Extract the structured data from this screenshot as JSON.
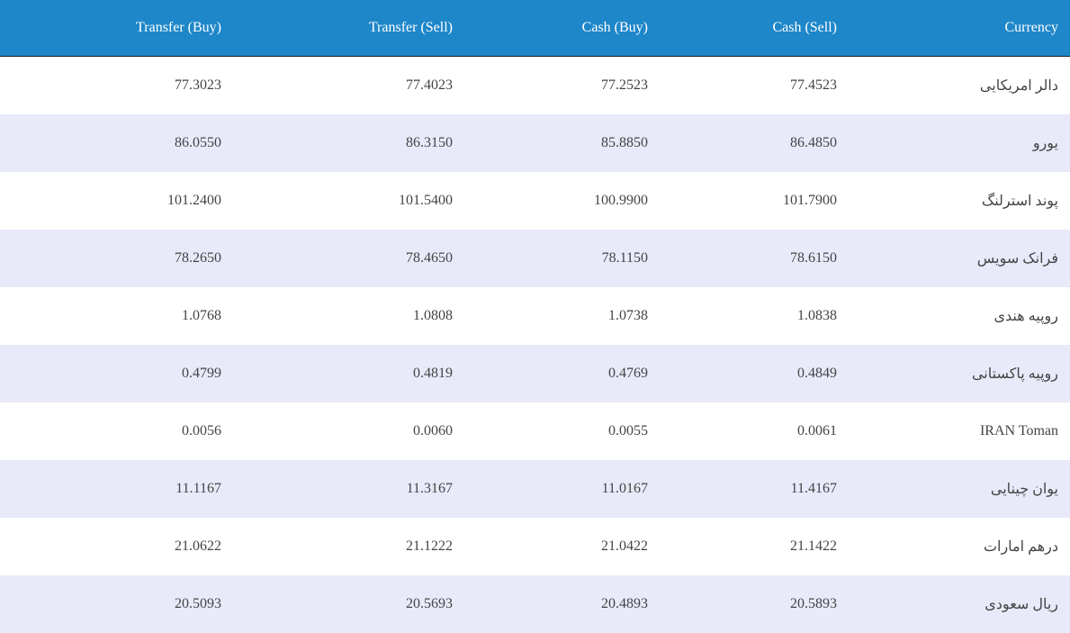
{
  "table": {
    "header": [
      "Transfer (Buy)",
      "Transfer (Sell)",
      "Cash (Buy)",
      "Cash (Sell)",
      "Currency"
    ],
    "rows": [
      [
        "77.3023",
        "77.4023",
        "77.2523",
        "77.4523",
        "دالر امریکایی"
      ],
      [
        "86.0550",
        "86.3150",
        "85.8850",
        "86.4850",
        "یورو"
      ],
      [
        "101.2400",
        "101.5400",
        "100.9900",
        "101.7900",
        "پوند استرلنگ"
      ],
      [
        "78.2650",
        "78.4650",
        "78.1150",
        "78.6150",
        "فرانک سویس"
      ],
      [
        "1.0768",
        "1.0808",
        "1.0738",
        "1.0838",
        "روپیه هندی"
      ],
      [
        "0.4799",
        "0.4819",
        "0.4769",
        "0.4849",
        "روپیه پاکستانی"
      ],
      [
        "0.0056",
        "0.0060",
        "0.0055",
        "0.0061",
        "IRAN Toman"
      ],
      [
        "11.1167",
        "11.3167",
        "11.0167",
        "11.4167",
        "یوان چینایی"
      ],
      [
        "21.0622",
        "21.1222",
        "21.0422",
        "21.1422",
        "درهم امارات"
      ],
      [
        "20.5093",
        "20.5693",
        "20.4893",
        "20.5893",
        "ریال سعودی"
      ]
    ]
  }
}
